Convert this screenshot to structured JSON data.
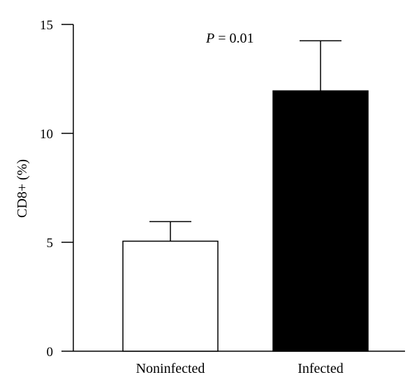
{
  "chart_data": {
    "type": "bar",
    "categories": [
      "Noninfected",
      "Infected"
    ],
    "values": [
      5.05,
      11.95
    ],
    "errors": [
      0.9,
      2.3
    ],
    "bar_colors": [
      "#ffffff",
      "#000000"
    ],
    "ylabel": "CD8+ (%)",
    "ylim": [
      0,
      15
    ],
    "yticks": [
      0,
      5,
      10,
      15
    ],
    "annotation": {
      "italic": "P",
      "text": " = 0.01"
    },
    "grid": false
  }
}
